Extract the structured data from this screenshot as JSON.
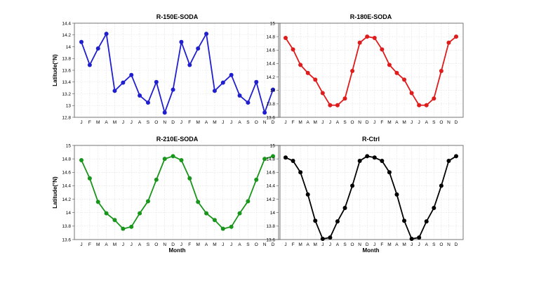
{
  "chart_data": [
    {
      "type": "line",
      "title": "R-150E-SODA",
      "xlabel": "",
      "ylabel": "Latitude(°N)",
      "categories": [
        "J",
        "F",
        "M",
        "A",
        "M",
        "J",
        "J",
        "A",
        "S",
        "O",
        "N",
        "D",
        "J",
        "F",
        "M",
        "A",
        "M",
        "J",
        "J",
        "A",
        "S",
        "O",
        "N",
        "D"
      ],
      "ylim": [
        12.8,
        14.4
      ],
      "yticks": [
        "12.8",
        "13",
        "13.2",
        "13.4",
        "13.6",
        "13.8",
        "14",
        "14.2",
        "14.4"
      ],
      "grid": true,
      "series": [
        {
          "color": "#1f1fd0",
          "values": [
            14.08,
            13.69,
            13.97,
            14.22,
            13.25,
            13.39,
            13.52,
            13.17,
            13.05,
            13.4,
            12.88,
            13.27,
            14.08,
            13.69,
            13.97,
            14.22,
            13.25,
            13.39,
            13.52,
            13.17,
            13.05,
            13.4,
            12.88,
            13.27
          ]
        }
      ]
    },
    {
      "type": "line",
      "title": "R-180E-SODA",
      "xlabel": "",
      "ylabel": "",
      "categories": [
        "J",
        "F",
        "M",
        "A",
        "M",
        "J",
        "J",
        "A",
        "S",
        "O",
        "N",
        "D",
        "J",
        "F",
        "M",
        "A",
        "M",
        "J",
        "J",
        "A",
        "S",
        "O",
        "N",
        "D"
      ],
      "ylim": [
        13.6,
        15.0
      ],
      "yticks": [
        "13.6",
        "13.8",
        "14",
        "14.2",
        "14.4",
        "14.6",
        "14.8",
        "15"
      ],
      "grid": true,
      "series": [
        {
          "color": "#e01b1b",
          "values": [
            14.78,
            14.61,
            14.38,
            14.26,
            14.16,
            13.96,
            13.78,
            13.78,
            13.88,
            14.29,
            14.71,
            14.8,
            14.78,
            14.61,
            14.38,
            14.26,
            14.16,
            13.96,
            13.78,
            13.78,
            13.88,
            14.29,
            14.71,
            14.8
          ]
        }
      ]
    },
    {
      "type": "line",
      "title": "R-210E-SODA",
      "xlabel": "Month",
      "ylabel": "Latitude(°N)",
      "categories": [
        "J",
        "F",
        "M",
        "A",
        "M",
        "J",
        "J",
        "A",
        "S",
        "O",
        "N",
        "D",
        "J",
        "F",
        "M",
        "A",
        "M",
        "J",
        "J",
        "A",
        "S",
        "O",
        "N",
        "D"
      ],
      "ylim": [
        13.6,
        15.0
      ],
      "yticks": [
        "13.6",
        "13.8",
        "14",
        "14.2",
        "14.4",
        "14.6",
        "14.8",
        "15"
      ],
      "grid": true,
      "series": [
        {
          "color": "#18951b",
          "values": [
            14.78,
            14.51,
            14.16,
            13.99,
            13.89,
            13.76,
            13.79,
            13.99,
            14.17,
            14.49,
            14.8,
            14.84,
            14.78,
            14.51,
            14.16,
            13.99,
            13.89,
            13.76,
            13.79,
            13.99,
            14.17,
            14.49,
            14.8,
            14.84
          ]
        }
      ]
    },
    {
      "type": "line",
      "title": "R-Ctrl",
      "xlabel": "Month",
      "ylabel": "",
      "categories": [
        "J",
        "F",
        "M",
        "A",
        "M",
        "J",
        "J",
        "A",
        "S",
        "O",
        "N",
        "D",
        "J",
        "F",
        "M",
        "A",
        "M",
        "J",
        "J",
        "A",
        "S",
        "O",
        "N",
        "D"
      ],
      "ylim": [
        13.6,
        15.0
      ],
      "yticks": [
        "13.6",
        "13.8",
        "14",
        "14.2",
        "14.4",
        "14.6",
        "14.8",
        "15"
      ],
      "grid": true,
      "series": [
        {
          "color": "#000000",
          "values": [
            14.82,
            14.77,
            14.6,
            14.27,
            13.88,
            13.61,
            13.63,
            13.87,
            14.07,
            14.4,
            14.77,
            14.84,
            14.82,
            14.77,
            14.6,
            14.27,
            13.88,
            13.61,
            13.63,
            13.87,
            14.07,
            14.4,
            14.77,
            14.84
          ]
        }
      ]
    }
  ]
}
